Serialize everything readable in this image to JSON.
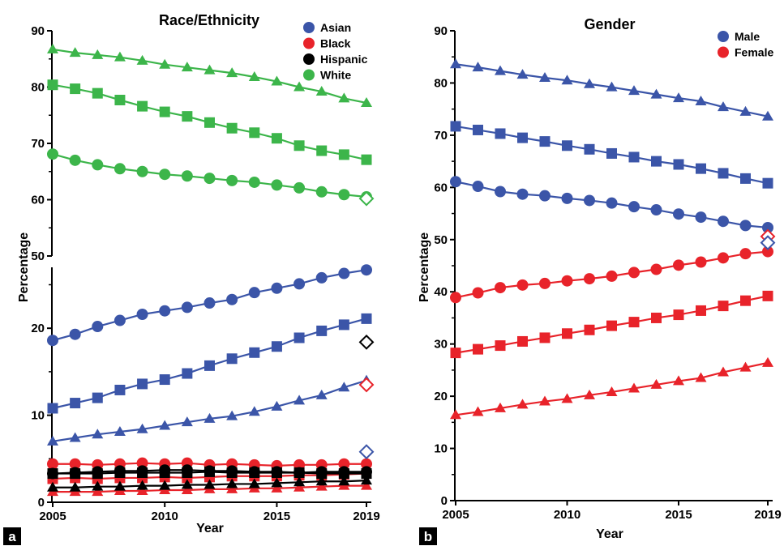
{
  "colors": {
    "asian": "#3b55a8",
    "black": "#e8232a",
    "hispanic": "#000000",
    "white": "#3cb54a",
    "male": "#3b55a8",
    "female": "#e8232a",
    "axis": "#000000"
  },
  "chart_data": [
    {
      "id": "a",
      "type": "line",
      "panel_label": "a",
      "title": "Race/Ethnicity",
      "xlabel": "Year",
      "ylabel": "Percentage",
      "xlim": [
        2005,
        2019
      ],
      "x_ticks": [
        "2005",
        "2010",
        "2015",
        "2019"
      ],
      "broken_y_axis": true,
      "ylim_lower": [
        0,
        27
      ],
      "ylim_upper": [
        50,
        90
      ],
      "y_ticks_lower": [
        "0",
        "10",
        "20"
      ],
      "y_ticks_upper": [
        "50",
        "60",
        "70",
        "80",
        "90"
      ],
      "legend_position": "top-right",
      "legend": [
        {
          "label": "Asian",
          "color_key": "asian"
        },
        {
          "label": "Black",
          "color_key": "black"
        },
        {
          "label": "Hispanic",
          "color_key": "hispanic"
        },
        {
          "label": "White",
          "color_key": "white"
        }
      ],
      "x": [
        2005,
        2006,
        2007,
        2008,
        2009,
        2010,
        2011,
        2012,
        2013,
        2014,
        2015,
        2016,
        2017,
        2018,
        2019
      ],
      "series": [
        {
          "group": "asian",
          "marker": "circle",
          "values": [
            18.6,
            19.3,
            20.2,
            20.9,
            21.6,
            22.0,
            22.4,
            22.9,
            23.3,
            24.1,
            24.6,
            25.1,
            25.8,
            26.3,
            26.7
          ]
        },
        {
          "group": "asian",
          "marker": "square",
          "values": [
            10.8,
            11.4,
            12.0,
            12.9,
            13.6,
            14.1,
            14.8,
            15.7,
            16.5,
            17.2,
            17.9,
            18.9,
            19.7,
            20.4,
            21.1
          ]
        },
        {
          "group": "asian",
          "marker": "triangle",
          "values": [
            7.0,
            7.4,
            7.8,
            8.1,
            8.4,
            8.8,
            9.2,
            9.6,
            9.9,
            10.4,
            11.0,
            11.7,
            12.3,
            13.2,
            14.0
          ]
        },
        {
          "group": "black",
          "marker": "circle",
          "values": [
            4.4,
            4.4,
            4.3,
            4.4,
            4.5,
            4.4,
            4.5,
            4.3,
            4.4,
            4.3,
            4.2,
            4.3,
            4.3,
            4.4,
            4.4
          ]
        },
        {
          "group": "black",
          "marker": "square",
          "values": [
            2.7,
            2.8,
            2.7,
            2.8,
            2.8,
            2.9,
            2.8,
            2.9,
            3.0,
            3.0,
            3.0,
            3.1,
            3.1,
            3.2,
            3.3
          ]
        },
        {
          "group": "black",
          "marker": "triangle",
          "values": [
            1.2,
            1.2,
            1.2,
            1.3,
            1.3,
            1.4,
            1.4,
            1.5,
            1.5,
            1.6,
            1.6,
            1.7,
            1.8,
            1.9,
            1.9
          ]
        },
        {
          "group": "hispanic",
          "marker": "circle",
          "values": [
            3.3,
            3.4,
            3.5,
            3.6,
            3.6,
            3.7,
            3.7,
            3.6,
            3.6,
            3.5,
            3.5,
            3.4,
            3.5,
            3.5,
            3.5
          ]
        },
        {
          "group": "hispanic",
          "marker": "square",
          "values": [
            3.3,
            3.3,
            3.3,
            3.4,
            3.4,
            3.4,
            3.4,
            3.5,
            3.4,
            3.4,
            3.4,
            3.4,
            3.3,
            3.3,
            3.3
          ]
        },
        {
          "group": "hispanic",
          "marker": "triangle",
          "values": [
            1.7,
            1.7,
            1.8,
            1.8,
            1.9,
            1.9,
            2.0,
            2.0,
            2.1,
            2.1,
            2.2,
            2.3,
            2.4,
            2.4,
            2.5
          ]
        },
        {
          "group": "white",
          "marker": "triangle",
          "values": [
            86.7,
            86.1,
            85.7,
            85.3,
            84.7,
            84.0,
            83.5,
            83.0,
            82.5,
            81.8,
            81.0,
            80.0,
            79.2,
            78.0,
            77.2
          ]
        },
        {
          "group": "white",
          "marker": "square",
          "values": [
            80.4,
            79.7,
            78.9,
            77.7,
            76.6,
            75.6,
            74.8,
            73.7,
            72.7,
            71.9,
            70.9,
            69.6,
            68.7,
            68.0,
            67.1
          ]
        },
        {
          "group": "white",
          "marker": "circle",
          "values": [
            68.1,
            67.0,
            66.2,
            65.5,
            65.0,
            64.5,
            64.2,
            63.8,
            63.4,
            63.1,
            62.6,
            62.1,
            61.4,
            60.9,
            60.5
          ]
        }
      ],
      "open_markers": [
        {
          "group": "white",
          "x": 2019,
          "y": 60.2
        },
        {
          "group": "hispanic",
          "x": 2019,
          "y": 18.4
        },
        {
          "group": "black",
          "x": 2019,
          "y": 13.5
        },
        {
          "group": "asian",
          "x": 2019,
          "y": 5.8
        }
      ]
    },
    {
      "id": "b",
      "type": "line",
      "panel_label": "b",
      "title": "Gender",
      "xlabel": "Year",
      "ylabel": "Percentage",
      "xlim": [
        2005,
        2019
      ],
      "x_ticks": [
        "2005",
        "2010",
        "2015",
        "2019"
      ],
      "ylim": [
        0,
        90
      ],
      "y_ticks": [
        "0",
        "10",
        "20",
        "30",
        "40",
        "50",
        "60",
        "70",
        "80",
        "90"
      ],
      "legend_position": "top-right",
      "legend": [
        {
          "label": "Male",
          "color_key": "male"
        },
        {
          "label": "Female",
          "color_key": "female"
        }
      ],
      "x": [
        2005,
        2006,
        2007,
        2008,
        2009,
        2010,
        2011,
        2012,
        2013,
        2014,
        2015,
        2016,
        2017,
        2018,
        2019
      ],
      "series": [
        {
          "group": "male",
          "marker": "triangle",
          "values": [
            83.6,
            83.0,
            82.3,
            81.6,
            81.0,
            80.5,
            79.8,
            79.2,
            78.5,
            77.8,
            77.1,
            76.5,
            75.4,
            74.5,
            73.6
          ]
        },
        {
          "group": "male",
          "marker": "square",
          "values": [
            71.7,
            71.0,
            70.3,
            69.5,
            68.8,
            68.0,
            67.3,
            66.5,
            65.8,
            65.0,
            64.4,
            63.6,
            62.7,
            61.7,
            60.8
          ]
        },
        {
          "group": "male",
          "marker": "circle",
          "values": [
            61.1,
            60.2,
            59.2,
            58.7,
            58.4,
            57.9,
            57.5,
            57.0,
            56.3,
            55.7,
            54.9,
            54.3,
            53.5,
            52.7,
            52.3
          ]
        },
        {
          "group": "female",
          "marker": "circle",
          "values": [
            38.9,
            39.8,
            40.8,
            41.3,
            41.6,
            42.1,
            42.5,
            43.0,
            43.7,
            44.3,
            45.1,
            45.7,
            46.5,
            47.3,
            47.7
          ]
        },
        {
          "group": "female",
          "marker": "square",
          "values": [
            28.3,
            29.0,
            29.7,
            30.5,
            31.2,
            32.0,
            32.7,
            33.5,
            34.2,
            35.0,
            35.6,
            36.4,
            37.3,
            38.3,
            39.2
          ]
        },
        {
          "group": "female",
          "marker": "triangle",
          "values": [
            16.4,
            17.0,
            17.7,
            18.4,
            19.0,
            19.5,
            20.2,
            20.8,
            21.5,
            22.2,
            22.9,
            23.5,
            24.6,
            25.5,
            26.4
          ]
        }
      ],
      "open_markers": [
        {
          "group": "female",
          "x": 2019,
          "y": 50.6
        },
        {
          "group": "male",
          "x": 2019,
          "y": 49.4
        }
      ]
    }
  ]
}
